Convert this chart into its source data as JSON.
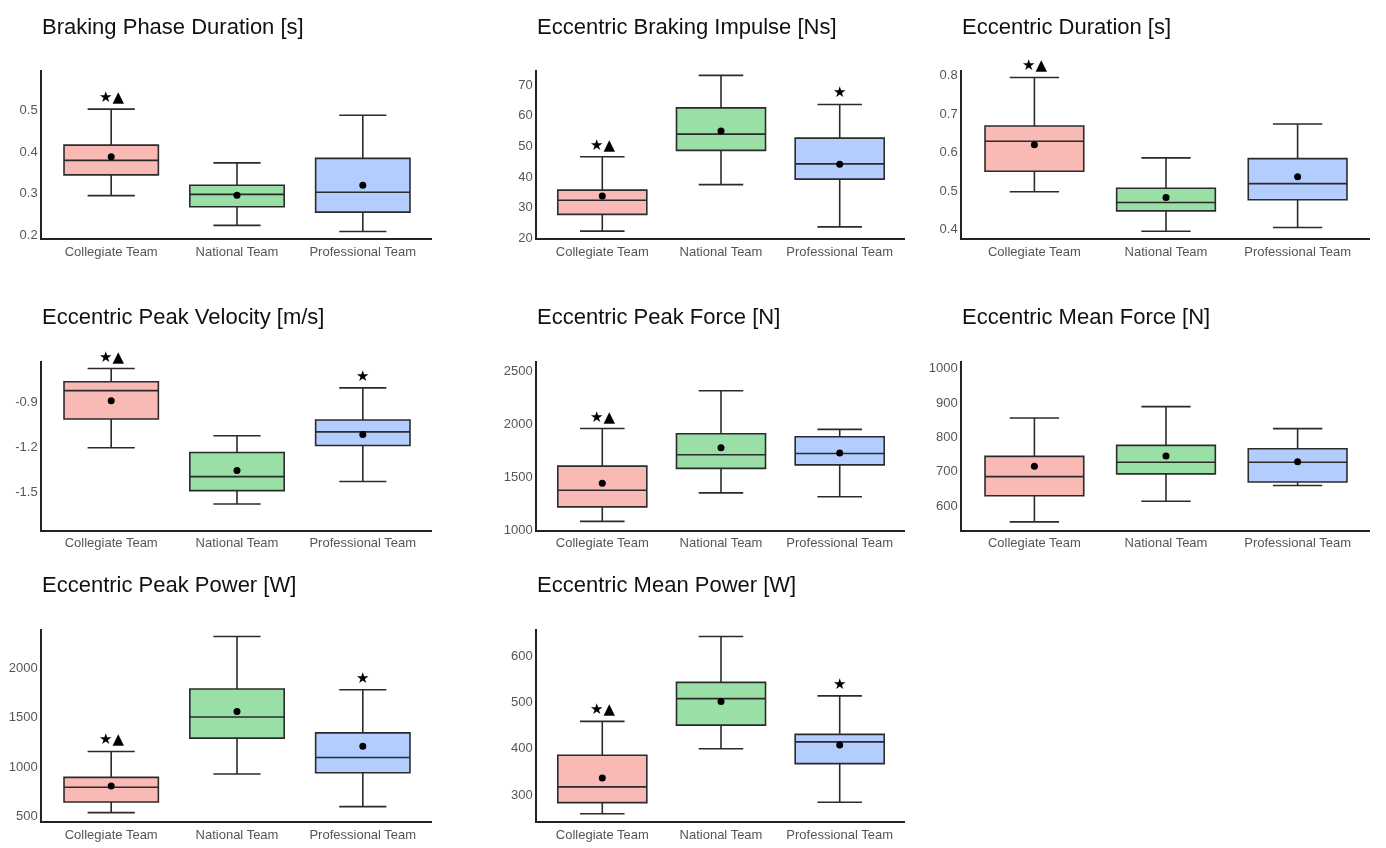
{
  "chart_data": [
    {
      "type": "box",
      "title": "Braking Phase Duration [s]",
      "categories": [
        "Collegiate Team",
        "National Team",
        "Professional Team"
      ],
      "colors": [
        "#f9bab6",
        "#99dfa6",
        "#b3cdfe"
      ],
      "ylim": [
        0.19,
        0.596
      ],
      "yticks": [
        0.2,
        0.3,
        0.4,
        0.5
      ],
      "boxes": [
        {
          "low": 0.293,
          "q1": 0.343,
          "median": 0.378,
          "q3": 0.415,
          "high": 0.502,
          "mean": 0.387
        },
        {
          "low": 0.221,
          "q1": 0.266,
          "median": 0.296,
          "q3": 0.318,
          "high": 0.372,
          "mean": 0.294
        },
        {
          "low": 0.206,
          "q1": 0.253,
          "median": 0.301,
          "q3": 0.383,
          "high": 0.487,
          "mean": 0.318
        }
      ],
      "annotations": [
        {
          "text": "★▲",
          "x": "Collegiate Team",
          "y": 0.502
        }
      ]
    },
    {
      "type": "box",
      "title": "Eccentric Braking Impulse [Ns]",
      "categories": [
        "Collegiate Team",
        "National Team",
        "Professional Team"
      ],
      "colors": [
        "#f9bab6",
        "#99dfa6",
        "#b3cdfe"
      ],
      "ylim": [
        19.7,
        74.6
      ],
      "yticks": [
        20,
        30,
        40,
        50,
        60,
        70
      ],
      "boxes": [
        {
          "low": 22.0,
          "q1": 27.5,
          "median": 32.1,
          "q3": 35.4,
          "high": 46.3,
          "mean": 33.5
        },
        {
          "low": 37.2,
          "q1": 48.4,
          "median": 53.7,
          "q3": 62.3,
          "high": 72.9,
          "mean": 54.7
        },
        {
          "low": 23.4,
          "q1": 39.0,
          "median": 44.0,
          "q3": 52.4,
          "high": 63.4,
          "mean": 43.9
        }
      ],
      "annotations": [
        {
          "text": "★▲",
          "x": "Collegiate Team",
          "y": 46.3
        },
        {
          "text": "★",
          "x": "Professional Team",
          "y": 63.4
        }
      ]
    },
    {
      "type": "box",
      "title": "Eccentric Duration [s]",
      "categories": [
        "Collegiate Team",
        "National Team",
        "Professional Team"
      ],
      "colors": [
        "#f9bab6",
        "#99dfa6",
        "#b3cdfe"
      ],
      "ylim": [
        0.375,
        0.812
      ],
      "yticks": [
        0.4,
        0.5,
        0.6,
        0.7,
        0.8
      ],
      "boxes": [
        {
          "low": 0.496,
          "q1": 0.549,
          "median": 0.627,
          "q3": 0.667,
          "high": 0.793,
          "mean": 0.618
        },
        {
          "low": 0.393,
          "q1": 0.446,
          "median": 0.468,
          "q3": 0.505,
          "high": 0.584,
          "mean": 0.481
        },
        {
          "low": 0.403,
          "q1": 0.475,
          "median": 0.517,
          "q3": 0.582,
          "high": 0.672,
          "mean": 0.535
        }
      ],
      "annotations": [
        {
          "text": "★▲",
          "x": "Collegiate Team",
          "y": 0.793
        }
      ]
    },
    {
      "type": "box",
      "title": "Eccentric Peak Velocity [m/s]",
      "categories": [
        "Collegiate Team",
        "National Team",
        "Professional Team"
      ],
      "colors": [
        "#f9bab6",
        "#99dfa6",
        "#b3cdfe"
      ],
      "ylim": [
        -1.753,
        -0.632
      ],
      "yticks": [
        -1.5,
        -1.2,
        -0.9
      ],
      "boxes": [
        {
          "low": -1.209,
          "q1": -1.019,
          "median": -0.83,
          "q3": -0.771,
          "high": -0.684,
          "mean": -0.897
        },
        {
          "low": -1.582,
          "q1": -1.494,
          "median": -1.401,
          "q3": -1.241,
          "high": -1.13,
          "mean": -1.36
        },
        {
          "low": -1.433,
          "q1": -1.194,
          "median": -1.104,
          "q3": -1.025,
          "high": -0.812,
          "mean": -1.121
        }
      ],
      "annotations": [
        {
          "text": "★▲",
          "x": "Collegiate Team",
          "y": -0.684
        },
        {
          "text": "★",
          "x": "Professional Team",
          "y": -0.812
        }
      ]
    },
    {
      "type": "box",
      "title": "Eccentric Peak Force [N]",
      "categories": [
        "Collegiate Team",
        "National Team",
        "Professional Team"
      ],
      "colors": [
        "#f9bab6",
        "#99dfa6",
        "#b3cdfe"
      ],
      "ylim": [
        995,
        2590
      ],
      "yticks": [
        1000,
        1500,
        2000,
        2500
      ],
      "boxes": [
        {
          "low": 1074,
          "q1": 1211,
          "median": 1368,
          "q3": 1595,
          "high": 1950,
          "mean": 1434
        },
        {
          "low": 1343,
          "q1": 1574,
          "median": 1702,
          "q3": 1901,
          "high": 2306,
          "mean": 1769
        },
        {
          "low": 1306,
          "q1": 1607,
          "median": 1715,
          "q3": 1872,
          "high": 1942,
          "mean": 1719
        }
      ],
      "annotations": [
        {
          "text": "★▲",
          "x": "Collegiate Team",
          "y": 1950
        }
      ]
    },
    {
      "type": "box",
      "title": "Eccentric Mean Force [N]",
      "categories": [
        "Collegiate Team",
        "National Team",
        "Professional Team"
      ],
      "colors": [
        "#f9bab6",
        "#99dfa6",
        "#b3cdfe"
      ],
      "ylim": [
        528,
        1021
      ],
      "yticks": [
        600,
        700,
        800,
        900,
        1000
      ],
      "boxes": [
        {
          "low": 551,
          "q1": 627,
          "median": 683,
          "q3": 742,
          "high": 854,
          "mean": 713
        },
        {
          "low": 611,
          "q1": 691,
          "median": 725,
          "q3": 774,
          "high": 887,
          "mean": 743
        },
        {
          "low": 657,
          "q1": 667,
          "median": 725,
          "q3": 764,
          "high": 823,
          "mean": 726
        }
      ]
    },
    {
      "type": "box",
      "title": "Eccentric Peak Power [W]",
      "categories": [
        "Collegiate Team",
        "National Team",
        "Professional Team"
      ],
      "colors": [
        "#f9bab6",
        "#99dfa6",
        "#b3cdfe"
      ],
      "ylim": [
        439,
        2399
      ],
      "yticks": [
        500,
        1000,
        1500,
        2000
      ],
      "boxes": [
        {
          "low": 527,
          "q1": 635,
          "median": 784,
          "q3": 885,
          "high": 1149,
          "mean": 797
        },
        {
          "low": 919,
          "q1": 1284,
          "median": 1500,
          "q3": 1784,
          "high": 2318,
          "mean": 1554
        },
        {
          "low": 588,
          "q1": 932,
          "median": 1088,
          "q3": 1338,
          "high": 1777,
          "mean": 1203
        }
      ],
      "annotations": [
        {
          "text": "★▲",
          "x": "Collegiate Team",
          "y": 1149
        },
        {
          "text": "★",
          "x": "Professional Team",
          "y": 1777
        }
      ]
    },
    {
      "type": "box",
      "title": "Eccentric Mean Power [W]",
      "categories": [
        "Collegiate Team",
        "National Team",
        "Professional Team"
      ],
      "colors": [
        "#f9bab6",
        "#99dfa6",
        "#b3cdfe"
      ],
      "ylim": [
        242,
        657
      ],
      "yticks": [
        300,
        400,
        500,
        600
      ],
      "boxes": [
        {
          "low": 258,
          "q1": 282,
          "median": 316,
          "q3": 384,
          "high": 457,
          "mean": 335
        },
        {
          "low": 398,
          "q1": 449,
          "median": 506,
          "q3": 541,
          "high": 640,
          "mean": 500
        },
        {
          "low": 283,
          "q1": 366,
          "median": 413,
          "q3": 429,
          "high": 512,
          "mean": 406
        }
      ],
      "annotations": [
        {
          "text": "★▲",
          "x": "Collegiate Team",
          "y": 457
        },
        {
          "text": "★",
          "x": "Professional Team",
          "y": 512
        }
      ]
    }
  ]
}
